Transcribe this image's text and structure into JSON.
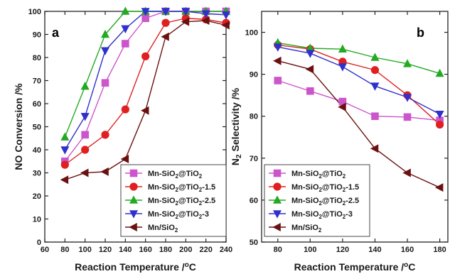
{
  "chart_data": [
    {
      "type": "line",
      "panel_label": "a",
      "xlabel": "Reaction Temperature /",
      "xlabel_unit": "oC",
      "ylabel": "NO Conversion /%",
      "xlim": [
        60,
        240
      ],
      "ylim": [
        0,
        100
      ],
      "xticks": [
        60,
        80,
        100,
        120,
        140,
        160,
        180,
        200,
        220,
        240
      ],
      "yticks": [
        0,
        10,
        20,
        30,
        40,
        50,
        60,
        70,
        80,
        90,
        100
      ],
      "legend_position": "bottom-right",
      "series": [
        {
          "name": "Mn-SiO2@TiO2",
          "color": "#cc55cc",
          "marker": "square",
          "x": [
            80,
            100,
            120,
            140,
            160,
            180,
            200,
            220,
            240
          ],
          "y": [
            35,
            46.5,
            69,
            86,
            97,
            100,
            100,
            100,
            100
          ]
        },
        {
          "name": "Mn-SiO2@TiO2-1.5",
          "color": "#e02020",
          "marker": "circle",
          "x": [
            80,
            100,
            120,
            140,
            160,
            180,
            200,
            220,
            240
          ],
          "y": [
            33.5,
            40,
            46.5,
            57.5,
            80.5,
            95,
            97,
            96.5,
            95
          ]
        },
        {
          "name": "Mn-SiO2@TiO2-2.5",
          "color": "#22aa22",
          "marker": "triangle-up",
          "x": [
            80,
            100,
            120,
            140,
            160,
            180,
            200,
            220,
            240
          ],
          "y": [
            45.5,
            67.5,
            90,
            100,
            100,
            100,
            100,
            100,
            100
          ]
        },
        {
          "name": "Mn-SiO2@TiO2-3",
          "color": "#3030cc",
          "marker": "triangle-down",
          "x": [
            80,
            100,
            120,
            140,
            160,
            180,
            200,
            220,
            240
          ],
          "y": [
            40,
            54.5,
            83,
            92.5,
            100,
            100,
            100,
            99,
            98.5
          ]
        },
        {
          "name": "Mn/SiO2",
          "color": "#6b1010",
          "marker": "triangle-left",
          "x": [
            80,
            100,
            120,
            140,
            160,
            180,
            200,
            220,
            240
          ],
          "y": [
            27,
            30,
            30.5,
            36,
            57,
            89,
            95.5,
            96,
            94
          ]
        }
      ]
    },
    {
      "type": "line",
      "panel_label": "b",
      "xlabel": "Reaction Temperature /",
      "xlabel_unit": "oC",
      "ylabel": "N2 Selectivity /%",
      "xlim": [
        70,
        185
      ],
      "ylim": [
        50,
        105
      ],
      "xticks": [
        80,
        100,
        120,
        140,
        160,
        180
      ],
      "yticks": [
        50,
        60,
        70,
        80,
        90,
        100
      ],
      "legend_position": "bottom-left",
      "series": [
        {
          "name": "Mn-SiO2@TiO2",
          "color": "#cc55cc",
          "marker": "square",
          "x": [
            80,
            100,
            120,
            140,
            160,
            180
          ],
          "y": [
            88.5,
            86,
            83.5,
            80,
            79.8,
            79
          ]
        },
        {
          "name": "Mn-SiO2@TiO2-1.5",
          "color": "#e02020",
          "marker": "circle",
          "x": [
            80,
            100,
            120,
            140,
            160,
            180
          ],
          "y": [
            97,
            96,
            93,
            91,
            85,
            78
          ]
        },
        {
          "name": "Mn-SiO2@TiO2-2.5",
          "color": "#22aa22",
          "marker": "triangle-up",
          "x": [
            80,
            100,
            120,
            140,
            160,
            180
          ],
          "y": [
            97.5,
            96.2,
            96,
            94,
            92.5,
            90.2
          ]
        },
        {
          "name": "Mn-SiO2@TiO2-3",
          "color": "#3030cc",
          "marker": "triangle-down",
          "x": [
            80,
            100,
            120,
            140,
            160,
            180
          ],
          "y": [
            96.5,
            95,
            91.8,
            87.2,
            84.5,
            80.5
          ]
        },
        {
          "name": "Mn/SiO2",
          "color": "#6b1010",
          "marker": "triangle-left",
          "x": [
            80,
            100,
            120,
            140,
            160,
            180
          ],
          "y": [
            93.2,
            91.2,
            82.2,
            72.3,
            66.5,
            63
          ]
        }
      ]
    }
  ]
}
